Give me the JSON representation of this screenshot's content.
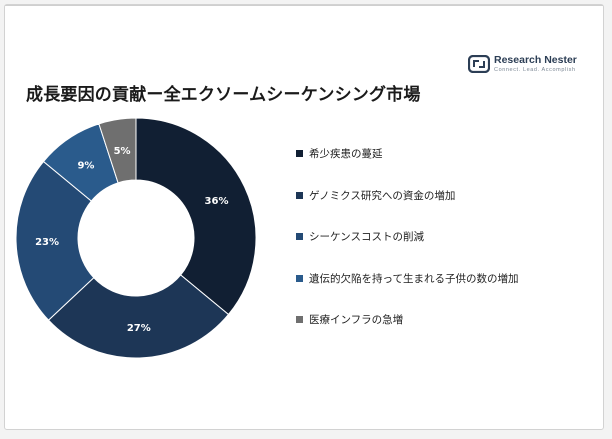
{
  "title": "成長要因の貢献ー全エクソームシーケンシング市場",
  "logo": {
    "name": "Research Nester",
    "tagline": "Connect. Lead. Accomplish"
  },
  "colors": {
    "dark": "#111f33",
    "navy1": "#1d3656",
    "navy2": "#244a75",
    "navy3": "#2a5b8c",
    "gray": "#6f6f6f"
  },
  "chart_data": {
    "type": "pie",
    "donut": true,
    "title": "成長要因の貢献ー全エクソームシーケンシング市場",
    "legend_position": "right",
    "slices": [
      {
        "label": "希少疾患の蔓延",
        "value": 36,
        "display": "36%",
        "color": "#111f33"
      },
      {
        "label": "ゲノミクス研究への資金の増加",
        "value": 27,
        "display": "27%",
        "color": "#1d3656"
      },
      {
        "label": "シーケンスコストの削減",
        "value": 23,
        "display": "23%",
        "color": "#244a75"
      },
      {
        "label": "遺伝的欠陥を持って生まれる子供の数の増加",
        "value": 9,
        "display": "9%",
        "color": "#2a5b8c"
      },
      {
        "label": "医療インフラの急増",
        "value": 5,
        "display": "5%",
        "color": "#6f6f6f"
      }
    ]
  }
}
